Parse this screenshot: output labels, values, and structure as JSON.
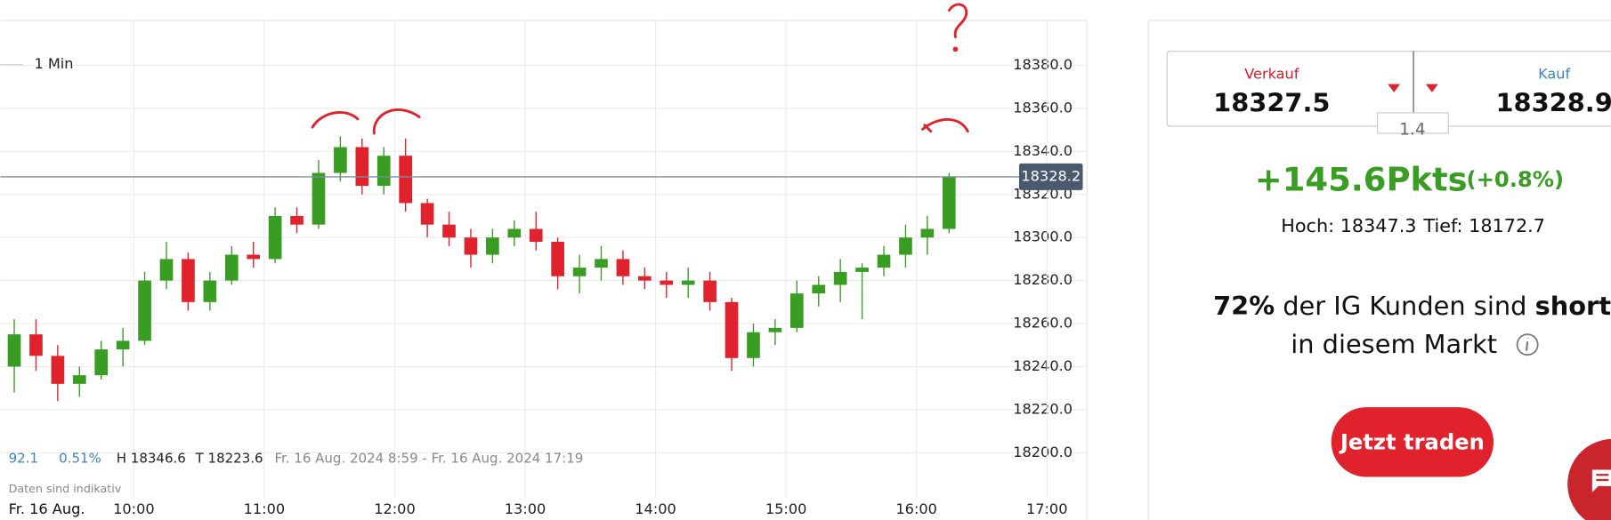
{
  "chart_data": {
    "type": "candlestick",
    "interval": "1 Min",
    "x": [
      540,
      550,
      560,
      570,
      580,
      590,
      600,
      610,
      620,
      630,
      640,
      650,
      660,
      670,
      680,
      690,
      700,
      710,
      720,
      730,
      740,
      750,
      760,
      770,
      780,
      790,
      800,
      810,
      820,
      830,
      840,
      850,
      860,
      870,
      880,
      890,
      900,
      910,
      920,
      930,
      940,
      950,
      960,
      970
    ],
    "open": [
      18240,
      18255,
      18245,
      18232,
      18236,
      18248,
      18252,
      18280,
      18290,
      18270,
      18280,
      18292,
      18290,
      18310,
      18306,
      18330,
      18342,
      18324,
      18338,
      18316,
      18306,
      18300,
      18292,
      18300,
      18304,
      18298,
      18282,
      18286,
      18290,
      18282,
      18280,
      18278,
      18280,
      18270,
      18244,
      18256,
      18258,
      18274,
      18278,
      18284,
      18286,
      18292,
      18300,
      18304
    ],
    "high": [
      18262,
      18262,
      18250,
      18240,
      18252,
      18258,
      18284,
      18298,
      18293,
      18284,
      18296,
      18298,
      18314,
      18314,
      18336,
      18347,
      18346,
      18342,
      18346,
      18318,
      18312,
      18304,
      18304,
      18308,
      18312,
      18300,
      18292,
      18296,
      18294,
      18286,
      18284,
      18286,
      18284,
      18272,
      18260,
      18262,
      18280,
      18282,
      18290,
      18288,
      18296,
      18306,
      18310,
      18330
    ],
    "low": [
      18228,
      18238,
      18224,
      18226,
      18234,
      18240,
      18250,
      18276,
      18266,
      18266,
      18278,
      18286,
      18288,
      18302,
      18304,
      18326,
      18320,
      18320,
      18312,
      18300,
      18296,
      18286,
      18288,
      18296,
      18294,
      18276,
      18274,
      18280,
      18278,
      18276,
      18272,
      18272,
      18266,
      18238,
      18240,
      18250,
      18256,
      18268,
      18270,
      18262,
      18282,
      18286,
      18292,
      18302
    ],
    "close": [
      18255,
      18245,
      18232,
      18236,
      18248,
      18252,
      18280,
      18290,
      18270,
      18280,
      18292,
      18290,
      18310,
      18306,
      18330,
      18342,
      18324,
      18338,
      18316,
      18306,
      18300,
      18292,
      18300,
      18304,
      18298,
      18282,
      18286,
      18290,
      18282,
      18280,
      18278,
      18280,
      18270,
      18244,
      18256,
      18258,
      18274,
      18278,
      18284,
      18286,
      18292,
      18300,
      18304,
      18328.2
    ],
    "up_color": "#3a9d23",
    "down_color": "#e0222d",
    "last": 18328.2,
    "xlim": [
      538.6,
      1038.4
    ],
    "xticks": [
      {
        "value": 600,
        "label": "10:00"
      },
      {
        "value": 660,
        "label": "11:00"
      },
      {
        "value": 720,
        "label": "12:00"
      },
      {
        "value": 780,
        "label": "13:00"
      },
      {
        "value": 840,
        "label": "14:00"
      },
      {
        "value": 900,
        "label": "15:00"
      },
      {
        "value": 960,
        "label": "16:00"
      },
      {
        "value": 1020,
        "label": "17:00"
      }
    ],
    "ylim": [
      18179.6,
      18400.4
    ],
    "yticks": [
      {
        "value": 18200,
        "label": "18200.0"
      },
      {
        "value": 18220,
        "label": "18220.0"
      },
      {
        "value": 18240,
        "label": "18240.0"
      },
      {
        "value": 18260,
        "label": "18260.0"
      },
      {
        "value": 18280,
        "label": "18280.0"
      },
      {
        "value": 18300,
        "label": "18300.0"
      },
      {
        "value": 18320,
        "label": "18320.0"
      },
      {
        "value": 18340,
        "label": "18340.0"
      },
      {
        "value": 18360,
        "label": "18360.0"
      },
      {
        "value": 18380,
        "label": "18380.0"
      }
    ],
    "grid": true,
    "info": {
      "change": "92.1",
      "change_pct": "0.51%",
      "high": "H 18346.6",
      "low": "T 18223.6",
      "range": "Fr. 16 Aug. 2024 8:59 - Fr. 16 Aug. 2024 17:19",
      "note": "Daten sind indikativ",
      "date": "Fr. 16 Aug."
    }
  },
  "panel": {
    "sell_label": "Verkauf",
    "sell": "18327.5",
    "buy_label": "Kauf",
    "buy": "18328.9",
    "spread": "1.4",
    "change": "+145.6Pkts",
    "change_pct": "(+0.8%)",
    "high": "Hoch: 18347.3",
    "low": "Tief: 18172.7",
    "sentiment_pct": "72%",
    "sentiment_text": "der IG Kunden sind",
    "sentiment_side": "short",
    "sentiment_tail": "in diesem Markt",
    "button": "Jetzt traden"
  }
}
